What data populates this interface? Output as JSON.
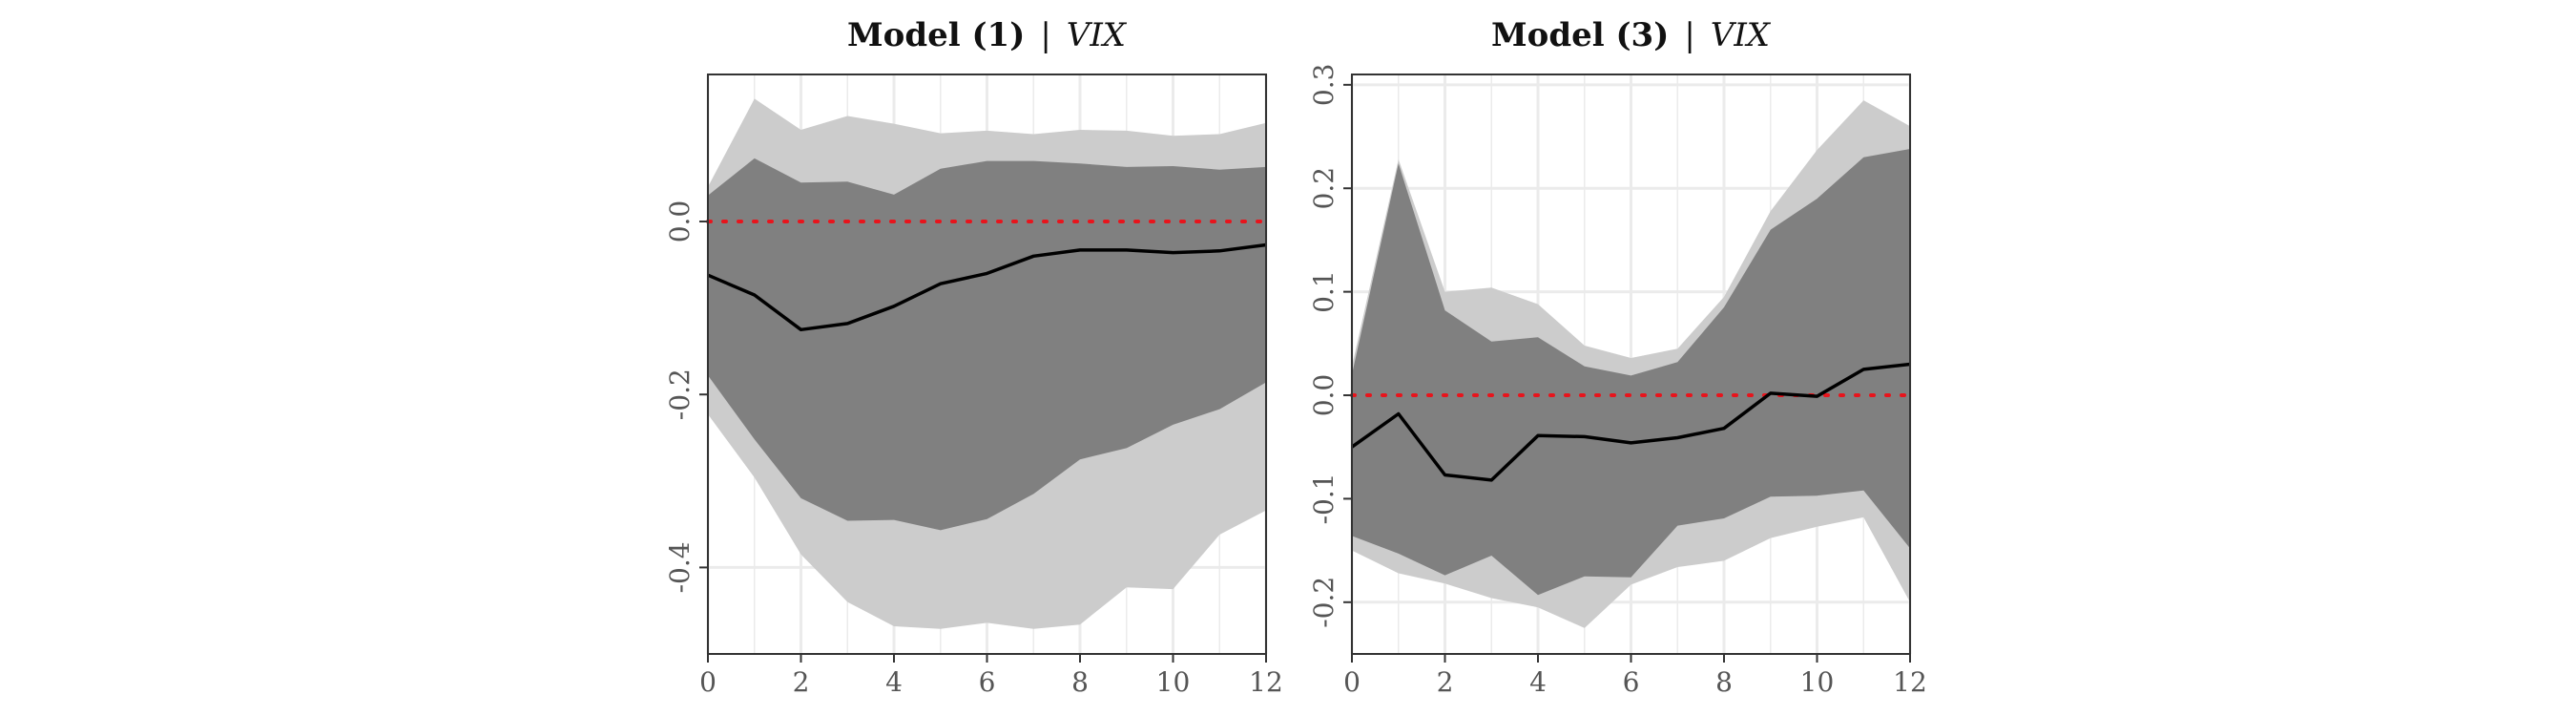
{
  "chart_data": [
    {
      "type": "area",
      "title": "Model (1)",
      "title_separator": "|",
      "title_series": "VIX",
      "xlabel": "",
      "ylabel": "",
      "xlim": [
        0,
        12
      ],
      "ylim": [
        -0.5,
        0.17
      ],
      "xticks": [
        0,
        2,
        4,
        6,
        8,
        10,
        12
      ],
      "yticks": [
        0.0,
        -0.2,
        -0.4
      ],
      "ytick_labels": [
        "0.0",
        "-0.2",
        "-0.4"
      ],
      "grid": true,
      "x": [
        0,
        1,
        2,
        3,
        4,
        5,
        6,
        7,
        8,
        9,
        10,
        11,
        12
      ],
      "estimate": [
        -0.062,
        -0.085,
        -0.125,
        -0.118,
        -0.098,
        -0.072,
        -0.06,
        -0.04,
        -0.033,
        -0.033,
        -0.036,
        -0.034,
        -0.027
      ],
      "inner_band": {
        "upper": [
          0.03,
          0.073,
          0.045,
          0.046,
          0.031,
          0.061,
          0.07,
          0.07,
          0.067,
          0.063,
          0.064,
          0.06,
          0.063
        ],
        "lower": [
          -0.178,
          -0.252,
          -0.32,
          -0.346,
          -0.345,
          -0.357,
          -0.344,
          -0.315,
          -0.275,
          -0.262,
          -0.235,
          -0.217,
          -0.186
        ]
      },
      "outer_band": {
        "upper": [
          0.04,
          0.142,
          0.106,
          0.122,
          0.113,
          0.102,
          0.105,
          0.101,
          0.106,
          0.105,
          0.099,
          0.101,
          0.114
        ],
        "lower": [
          -0.223,
          -0.296,
          -0.385,
          -0.44,
          -0.468,
          -0.471,
          -0.464,
          -0.471,
          -0.466,
          -0.423,
          -0.425,
          -0.362,
          -0.334
        ]
      },
      "reference_line": 0.0,
      "colors": {
        "outer": "#cccccc",
        "inner": "#808080",
        "line": "#000000",
        "reference": "#e8141c",
        "grid": "#ebebeb"
      }
    },
    {
      "type": "area",
      "title": "Model (3)",
      "title_separator": "|",
      "title_series": "VIX",
      "xlabel": "",
      "ylabel": "",
      "xlim": [
        0,
        12
      ],
      "ylim": [
        -0.25,
        0.31
      ],
      "xticks": [
        0,
        2,
        4,
        6,
        8,
        10,
        12
      ],
      "yticks": [
        0.3,
        0.2,
        0.1,
        0.0,
        -0.1,
        -0.2
      ],
      "ytick_labels": [
        "0.3",
        "0.2",
        "0.1",
        "0.0",
        "-0.1",
        "-0.2"
      ],
      "grid": true,
      "x": [
        0,
        1,
        2,
        3,
        4,
        5,
        6,
        7,
        8,
        9,
        10,
        11,
        12
      ],
      "estimate": [
        -0.05,
        -0.018,
        -0.077,
        -0.082,
        -0.039,
        -0.04,
        -0.046,
        -0.041,
        -0.032,
        0.002,
        -0.001,
        0.025,
        0.03
      ],
      "inner_band": {
        "upper": [
          0.02,
          0.224,
          0.082,
          0.052,
          0.056,
          0.028,
          0.019,
          0.032,
          0.085,
          0.16,
          0.19,
          0.23,
          0.238
        ],
        "lower": [
          -0.136,
          -0.153,
          -0.174,
          -0.155,
          -0.193,
          -0.175,
          -0.176,
          -0.126,
          -0.119,
          -0.098,
          -0.097,
          -0.092,
          -0.148
        ]
      },
      "outer_band": {
        "upper": [
          0.028,
          0.228,
          0.1,
          0.104,
          0.088,
          0.048,
          0.036,
          0.045,
          0.095,
          0.178,
          0.237,
          0.285,
          0.26
        ],
        "lower": [
          -0.15,
          -0.172,
          -0.182,
          -0.196,
          -0.205,
          -0.225,
          -0.183,
          -0.166,
          -0.16,
          -0.138,
          -0.127,
          -0.118,
          -0.2
        ]
      },
      "reference_line": 0.0,
      "colors": {
        "outer": "#cccccc",
        "inner": "#808080",
        "line": "#000000",
        "reference": "#e8141c",
        "grid": "#ebebeb"
      }
    }
  ]
}
